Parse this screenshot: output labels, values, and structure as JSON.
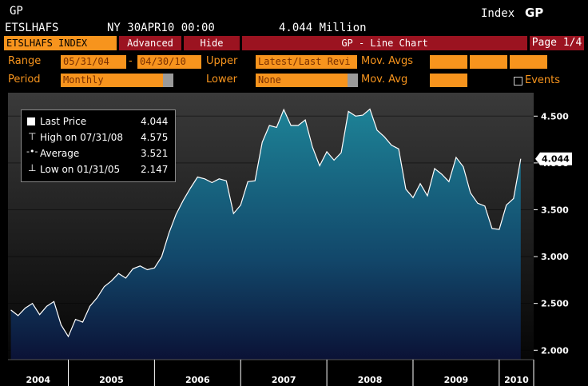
{
  "header": {
    "ticker_short": "GP",
    "index_label": "Index",
    "index_code": "GP",
    "ticker": "ETSLHAFS",
    "datetime": "NY 30APR10 00:00",
    "value": "4.044 Million"
  },
  "toolbar": {
    "index_field": "ETSLHAFS INDEX",
    "advanced_label": "Advanced",
    "hide_label": "Hide",
    "chart_title": "GP - Line Chart",
    "page_label": "Page 1/4"
  },
  "controls": {
    "range_label": "Range",
    "range_start": "05/31/04",
    "range_sep": "-",
    "range_end": "04/30/10",
    "upper_label": "Upper",
    "upper_value": "Latest/Last Revi",
    "mov_avgs_label": "Mov. Avgs",
    "period_label": "Period",
    "period_value": "Monthly",
    "lower_label": "Lower",
    "lower_value": "None",
    "mov_avg_label": "Mov. Avg",
    "events_label": "Events"
  },
  "legend": {
    "last_price_label": "Last Price",
    "last_price_value": "4.044",
    "high_label": "High on 07/31/08",
    "high_value": "4.575",
    "average_label": "Average",
    "average_value": "3.521",
    "low_label": "Low on 01/31/05",
    "low_value": "2.147"
  },
  "colors": {
    "accent_orange": "#f7941d",
    "toolbar_red": "#9b1320",
    "area_top": "#1d8296",
    "area_bottom": "#0b1236"
  },
  "chart_data": {
    "type": "area",
    "title": "",
    "xlabel": "",
    "ylabel": "",
    "ylim": [
      1.9,
      4.75
    ],
    "yticks": [
      2.0,
      2.5,
      3.0,
      3.5,
      4.0,
      4.5
    ],
    "ytick_labels": [
      "2.000",
      "2.500",
      "3.000",
      "3.500",
      "4.000",
      "4.500"
    ],
    "last_value_label": "4.044",
    "years": [
      "2004",
      "2005",
      "2006",
      "2007",
      "2008",
      "2009",
      "2010"
    ],
    "x": [
      "2004-05",
      "2004-06",
      "2004-07",
      "2004-08",
      "2004-09",
      "2004-10",
      "2004-11",
      "2004-12",
      "2005-01",
      "2005-02",
      "2005-03",
      "2005-04",
      "2005-05",
      "2005-06",
      "2005-07",
      "2005-08",
      "2005-09",
      "2005-10",
      "2005-11",
      "2005-12",
      "2006-01",
      "2006-02",
      "2006-03",
      "2006-04",
      "2006-05",
      "2006-06",
      "2006-07",
      "2006-08",
      "2006-09",
      "2006-10",
      "2006-11",
      "2006-12",
      "2007-01",
      "2007-02",
      "2007-03",
      "2007-04",
      "2007-05",
      "2007-06",
      "2007-07",
      "2007-08",
      "2007-09",
      "2007-10",
      "2007-11",
      "2007-12",
      "2008-01",
      "2008-02",
      "2008-03",
      "2008-04",
      "2008-05",
      "2008-06",
      "2008-07",
      "2008-08",
      "2008-09",
      "2008-10",
      "2008-11",
      "2008-12",
      "2009-01",
      "2009-02",
      "2009-03",
      "2009-04",
      "2009-05",
      "2009-06",
      "2009-07",
      "2009-08",
      "2009-09",
      "2009-10",
      "2009-11",
      "2009-12",
      "2010-01",
      "2010-02",
      "2010-03",
      "2010-04"
    ],
    "values": [
      2.43,
      2.37,
      2.45,
      2.5,
      2.38,
      2.47,
      2.52,
      2.27,
      2.147,
      2.33,
      2.3,
      2.47,
      2.56,
      2.68,
      2.74,
      2.82,
      2.77,
      2.87,
      2.9,
      2.86,
      2.88,
      3.0,
      3.25,
      3.45,
      3.6,
      3.73,
      3.85,
      3.83,
      3.79,
      3.83,
      3.81,
      3.46,
      3.55,
      3.8,
      3.81,
      4.22,
      4.4,
      4.38,
      4.57,
      4.4,
      4.4,
      4.46,
      4.17,
      3.97,
      4.12,
      4.03,
      4.11,
      4.55,
      4.5,
      4.51,
      4.575,
      4.35,
      4.28,
      4.19,
      4.15,
      3.72,
      3.63,
      3.78,
      3.65,
      3.94,
      3.88,
      3.8,
      4.06,
      3.96,
      3.68,
      3.57,
      3.54,
      3.3,
      3.29,
      3.55,
      3.62,
      4.044
    ]
  }
}
